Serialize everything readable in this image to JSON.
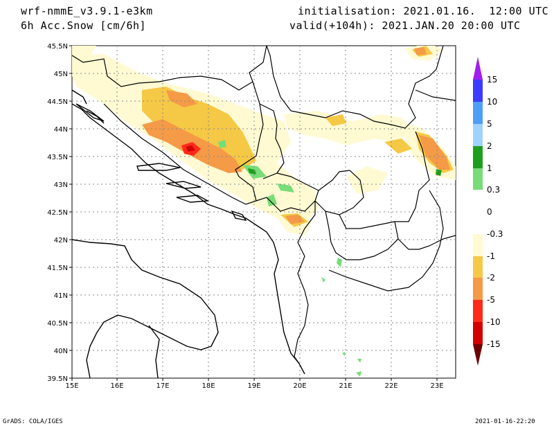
{
  "header": {
    "model": "wrf-nmmE_v3.9.1-e3km",
    "variable": "6h Acc.Snow [cm/6h]",
    "init": "initialisation: 2021.01.16.  12:00 UTC",
    "valid": "valid(+104h): 2021.JAN.20 20:00 UTC"
  },
  "footer": {
    "credit": "GrADS: COLA/IGES",
    "timestamp": "2021-01-16-22:20"
  },
  "map": {
    "lat_labels": [
      "45.5N",
      "45N",
      "44.5N",
      "44N",
      "43.5N",
      "43N",
      "42.5N",
      "42N",
      "41.5N",
      "41N",
      "40.5N",
      "40N",
      "39.5N"
    ],
    "lon_labels": [
      "15E",
      "16E",
      "17E",
      "18E",
      "19E",
      "20E",
      "21E",
      "22E",
      "23E"
    ]
  },
  "colorbar": {
    "labels": [
      "15",
      "10",
      "5",
      "2",
      "1",
      "0.3",
      "0",
      "-0.3",
      "-1",
      "-2",
      "-5",
      "-10",
      "-15"
    ],
    "colors": [
      "#a01ef0",
      "#3c3cff",
      "#4f9ef5",
      "#a0d2ff",
      "#1e9e1e",
      "#78dc78",
      "#ffffff",
      "#fffad2",
      "#f5c846",
      "#f59a46",
      "#ff2a1a",
      "#d20000",
      "#8b0000"
    ],
    "top_arrow_color": "#a01ef0",
    "bottom_arrow_color": "#6e0000"
  }
}
